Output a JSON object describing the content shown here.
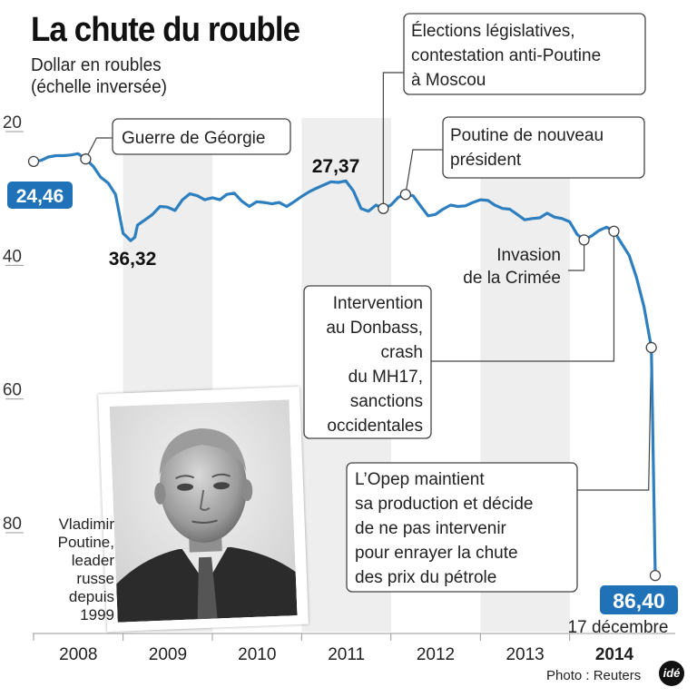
{
  "title": "La chute du rouble",
  "subtitle_line1": "Dollar en roubles",
  "subtitle_line2": "(échelle inversée)",
  "photo_caption": [
    "Vladimir",
    "Poutine,",
    "leader",
    "russe",
    "depuis",
    "1999"
  ],
  "photo_credit": "Photo : Reuters",
  "logo_text": "idé",
  "colors": {
    "line": "#2e7fc0",
    "badge": "#1f72b8",
    "band": "#eeeeee",
    "axis": "#999999"
  },
  "chart_data": {
    "type": "line",
    "title": "La chute du rouble",
    "ylabel": "Dollar en roubles (échelle inversée)",
    "y_inverted": true,
    "ylim": [
      20,
      88
    ],
    "y_ticks": [
      "20",
      "40",
      "60",
      "80"
    ],
    "x_ticks": [
      "2008",
      "2009",
      "2010",
      "2011",
      "2012",
      "2013",
      "2014"
    ],
    "x_ticks_bold": [
      "2014"
    ],
    "grid": false,
    "series": [
      {
        "x": [
          "2008-01-01",
          "2008-02-01",
          "2008-03-01",
          "2008-04-01",
          "2008-05-01",
          "2008-06-01",
          "2008-07-01",
          "2008-08-01",
          "2008-09-01",
          "2008-10-01",
          "2008-11-01",
          "2008-12-01",
          "2009-01-01",
          "2009-02-01",
          "2009-02-18",
          "2009-03-01",
          "2009-04-01",
          "2009-05-01",
          "2009-06-01",
          "2009-07-01",
          "2009-08-01",
          "2009-09-01",
          "2009-10-01",
          "2009-11-01",
          "2009-12-01",
          "2010-01-01",
          "2010-02-01",
          "2010-03-01",
          "2010-04-01",
          "2010-05-01",
          "2010-06-01",
          "2010-07-01",
          "2010-08-01",
          "2010-09-01",
          "2010-10-01",
          "2010-11-01",
          "2010-12-01",
          "2011-01-01",
          "2011-02-01",
          "2011-03-01",
          "2011-04-01",
          "2011-05-01",
          "2011-06-01",
          "2011-07-01",
          "2011-08-01",
          "2011-09-01",
          "2011-10-01",
          "2011-11-01",
          "2011-12-01",
          "2012-01-01",
          "2012-02-01",
          "2012-03-01",
          "2012-04-01",
          "2012-05-01",
          "2012-06-01",
          "2012-07-01",
          "2012-08-01",
          "2012-09-01",
          "2012-10-01",
          "2012-11-01",
          "2012-12-01",
          "2013-01-01",
          "2013-02-01",
          "2013-03-01",
          "2013-04-01",
          "2013-05-01",
          "2013-06-01",
          "2013-07-01",
          "2013-08-01",
          "2013-09-01",
          "2013-10-01",
          "2013-11-01",
          "2013-12-01",
          "2014-01-01",
          "2014-02-01",
          "2014-03-01",
          "2014-04-01",
          "2014-05-01",
          "2014-06-01",
          "2014-07-01",
          "2014-08-01",
          "2014-09-01",
          "2014-10-01",
          "2014-11-01",
          "2014-12-01",
          "2014-12-17"
        ],
        "y": [
          24.46,
          24.3,
          23.8,
          23.6,
          23.6,
          23.5,
          23.3,
          24.1,
          25.2,
          26.8,
          27.7,
          29.4,
          35.2,
          36.32,
          35.8,
          34.0,
          33.2,
          32.4,
          31.2,
          31.3,
          31.8,
          30.2,
          29.3,
          29.6,
          30.2,
          29.9,
          30.2,
          29.4,
          29.2,
          30.4,
          31.2,
          30.5,
          30.6,
          30.8,
          30.6,
          31.2,
          30.5,
          29.7,
          29.0,
          28.5,
          28.0,
          27.5,
          27.6,
          27.37,
          28.9,
          31.5,
          31.9,
          31.0,
          31.5,
          31.0,
          29.8,
          29.4,
          29.6,
          31.1,
          32.6,
          32.4,
          31.6,
          31.0,
          31.2,
          31.1,
          30.6,
          30.2,
          30.3,
          31.0,
          31.5,
          31.6,
          32.4,
          33.2,
          33.0,
          32.9,
          32.2,
          32.8,
          33.0,
          33.5,
          35.4,
          36.2,
          35.6,
          34.8,
          34.3,
          34.9,
          36.7,
          38.5,
          41.8,
          46.2,
          52.3,
          86.4
        ]
      }
    ],
    "value_labels": [
      "24,46",
      "36,32",
      "27,37"
    ],
    "end_value_label": "86,40",
    "end_date_label": "17 décembre",
    "annotations": {
      "georgie": "Guerre de Géorgie",
      "elections": [
        "Élections législatives,",
        "contestation anti-Poutine",
        "à Moscou"
      ],
      "president": [
        "Poutine de nouveau",
        "président"
      ],
      "crimee": [
        "Invasion",
        "de la Crimée"
      ],
      "donbass": [
        "Intervention",
        "au Donbass,",
        "crash",
        "du MH17,",
        "sanctions",
        "occidentales"
      ],
      "opep": [
        "L’Opep maintient",
        "sa production et décide",
        "de ne pas intervenir",
        "pour enrayer la chute",
        "des prix du pétrole"
      ]
    }
  }
}
